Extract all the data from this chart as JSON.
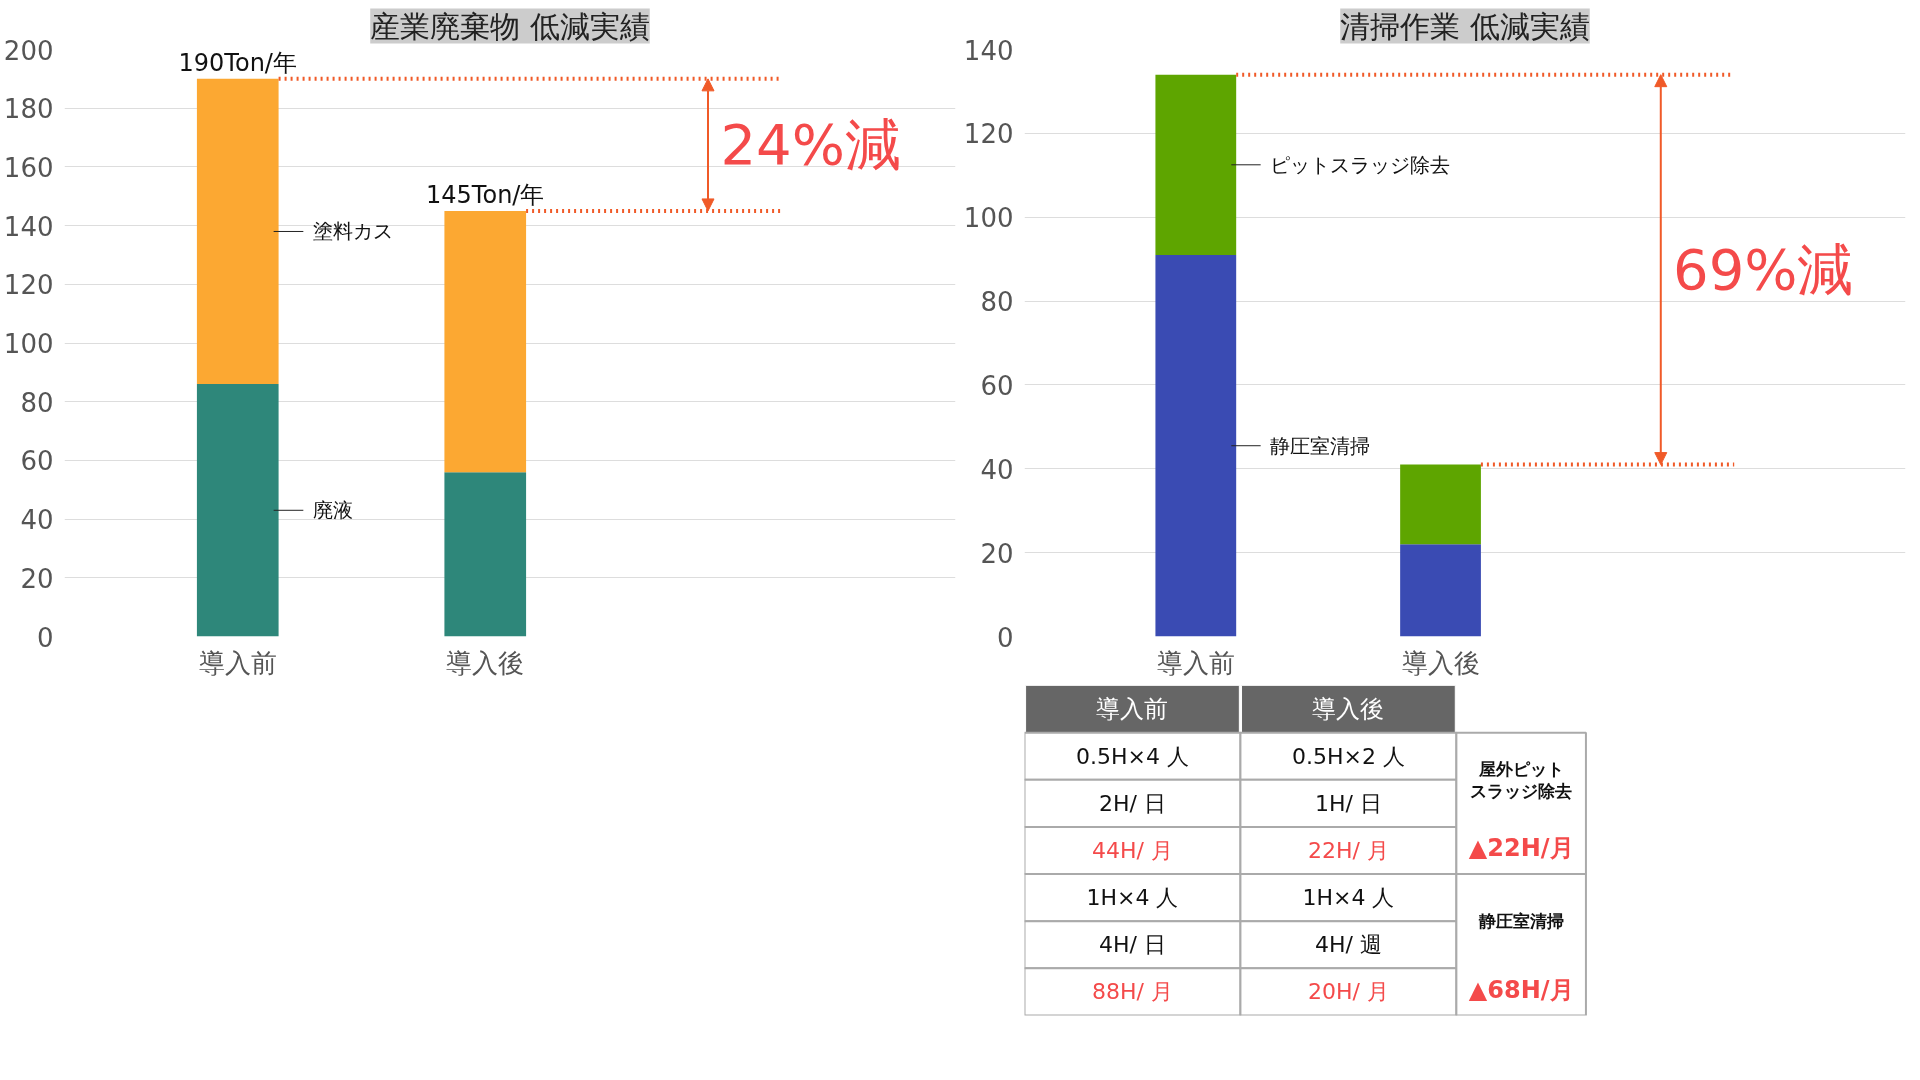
{
  "chart_data": [
    {
      "type": "bar",
      "title": "産業廃棄物 低減実績",
      "categories": [
        "導入前",
        "導入後"
      ],
      "stacked": true,
      "series": [
        {
          "name": "廃液",
          "color": "#2e877a",
          "values": [
            86,
            56
          ]
        },
        {
          "name": "塗料カス",
          "color": "#fca832",
          "values": [
            104,
            89
          ]
        }
      ],
      "totals": [
        "190Ton/年",
        "145Ton/年"
      ],
      "ylim": [
        0,
        200
      ],
      "yticks": [
        0,
        20,
        40,
        60,
        80,
        100,
        120,
        140,
        160,
        180,
        200
      ],
      "grid": "y",
      "ref_lines": [
        {
          "axis": "y",
          "value": 190,
          "color": "#f05a28",
          "line_style": "dotted"
        },
        {
          "axis": "y",
          "value": 145,
          "color": "#f05a28",
          "line_style": "dotted"
        }
      ],
      "annotations": [
        "24%減"
      ]
    },
    {
      "type": "bar",
      "title": "清掃作業 低減実績",
      "categories": [
        "導入前",
        "導入後"
      ],
      "stacked": true,
      "series": [
        {
          "name": "静圧室清掃",
          "color": "#3a4bb3",
          "values": [
            91,
            22
          ]
        },
        {
          "name": "ピットスラッジ除去",
          "color": "#5ea500",
          "values": [
            43,
            19
          ]
        }
      ],
      "ylim": [
        0,
        140
      ],
      "yticks": [
        0,
        20,
        40,
        60,
        80,
        100,
        120,
        140
      ],
      "grid": "y",
      "ref_lines": [
        {
          "axis": "y",
          "value": 134,
          "color": "#f05a28",
          "line_style": "dotted"
        },
        {
          "axis": "y",
          "value": 41,
          "color": "#f05a28",
          "line_style": "dotted"
        }
      ],
      "annotations": [
        "69%減"
      ]
    },
    {
      "type": "other",
      "categories": [
        "導入前",
        "導入後"
      ],
      "annotations": [
        "0.5H×4 人",
        "0.5H×2 人",
        "2H/ 日",
        "1H/ 日",
        "44H/ 月",
        "22H/ 月",
        "1H×4 人",
        "1H×4 人",
        "4H/ 日",
        "4H/ 週",
        "88H/ 月",
        "20H/ 月",
        "屋外ピットスラッジ除去",
        "▲22H/月",
        "静圧室清掃",
        "▲68H/月"
      ]
    }
  ]
}
